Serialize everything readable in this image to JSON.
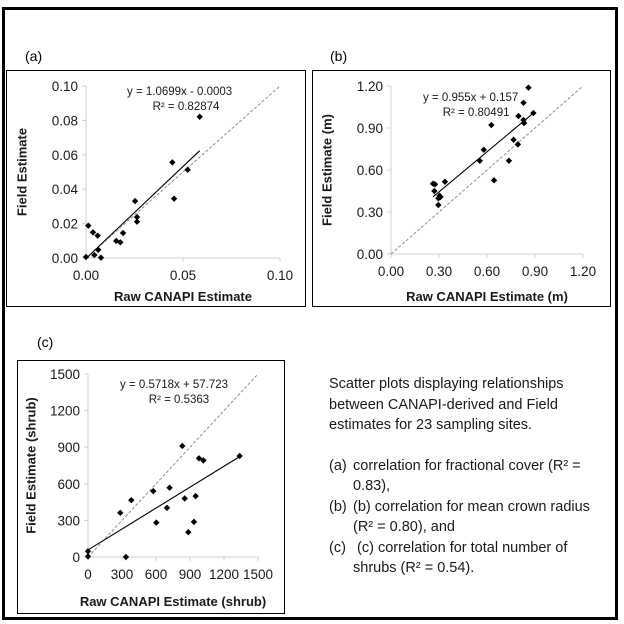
{
  "chart_data": [
    {
      "type": "scatter",
      "panel_label": "(a)",
      "title": "",
      "xlabel": "Raw CANAPI Estimate",
      "ylabel": "Field Estimate",
      "xlim": [
        0,
        0.1
      ],
      "ylim": [
        0,
        0.1
      ],
      "xticks": [
        "0.00",
        "0.05",
        "0.10"
      ],
      "xtick_values": [
        0,
        0.05,
        0.1
      ],
      "yticks": [
        "0.00",
        "0.02",
        "0.04",
        "0.06",
        "0.08",
        "0.10"
      ],
      "ytick_values": [
        0,
        0.02,
        0.04,
        0.06,
        0.08,
        0.1
      ],
      "grid": false,
      "equation": "y = 1.0699x - 0.0003",
      "r2_label": "R² = 0.82874",
      "trendline": {
        "slope": 1.0699,
        "intercept": -0.0003,
        "x_range": [
          0.0,
          0.0586
        ]
      },
      "one_to_one_line": true,
      "points": [
        {
          "x": 0.0586,
          "y": 0.0821
        },
        {
          "x": 0.0445,
          "y": 0.0556
        },
        {
          "x": 0.0524,
          "y": 0.0513
        },
        {
          "x": 0.0454,
          "y": 0.0345
        },
        {
          "x": 0.0253,
          "y": 0.0331
        },
        {
          "x": 0.0263,
          "y": 0.0238
        },
        {
          "x": 0.0263,
          "y": 0.0211
        },
        {
          "x": 0.0191,
          "y": 0.0145
        },
        {
          "x": 0.0156,
          "y": 0.0099
        },
        {
          "x": 0.0177,
          "y": 0.0091
        },
        {
          "x": 0.0012,
          "y": 0.0188
        },
        {
          "x": 0.0036,
          "y": 0.0149
        },
        {
          "x": 0.006,
          "y": 0.013
        },
        {
          "x": 0.0063,
          "y": 0.0048
        },
        {
          "x": 0.0043,
          "y": 0.0017
        },
        {
          "x": 0.0077,
          "y": 0.0002
        },
        {
          "x": 0.0,
          "y": 0.0006
        }
      ]
    },
    {
      "type": "scatter",
      "panel_label": "(b)",
      "title": "",
      "xlabel": "Raw CANAPI Estimate (m)",
      "ylabel": "Field Estimate (m)",
      "xlim": [
        0,
        1.2
      ],
      "ylim": [
        0,
        1.2
      ],
      "xticks": [
        "0.00",
        "0.30",
        "0.60",
        "0.90",
        "1.20"
      ],
      "xtick_values": [
        0,
        0.3,
        0.6,
        0.9,
        1.2
      ],
      "yticks": [
        "0.00",
        "0.30",
        "0.60",
        "0.90",
        "1.20"
      ],
      "ytick_values": [
        0,
        0.3,
        0.6,
        0.9,
        1.2
      ],
      "grid": false,
      "equation": "y = 0.955x + 0.157",
      "r2_label": "R² = 0.80491",
      "trendline": {
        "slope": 0.955,
        "intercept": 0.157,
        "x_range": [
          0.263,
          0.89
        ]
      },
      "one_to_one_line": true,
      "points": [
        {
          "x": 0.859,
          "y": 1.188
        },
        {
          "x": 0.828,
          "y": 1.08
        },
        {
          "x": 0.797,
          "y": 0.985
        },
        {
          "x": 0.89,
          "y": 1.007
        },
        {
          "x": 0.828,
          "y": 0.957
        },
        {
          "x": 0.832,
          "y": 0.935
        },
        {
          "x": 0.627,
          "y": 0.921
        },
        {
          "x": 0.766,
          "y": 0.816
        },
        {
          "x": 0.793,
          "y": 0.783
        },
        {
          "x": 0.58,
          "y": 0.745
        },
        {
          "x": 0.555,
          "y": 0.666
        },
        {
          "x": 0.737,
          "y": 0.666
        },
        {
          "x": 0.644,
          "y": 0.526
        },
        {
          "x": 0.263,
          "y": 0.502
        },
        {
          "x": 0.275,
          "y": 0.498
        },
        {
          "x": 0.337,
          "y": 0.516
        },
        {
          "x": 0.271,
          "y": 0.45
        },
        {
          "x": 0.304,
          "y": 0.416
        },
        {
          "x": 0.296,
          "y": 0.398
        },
        {
          "x": 0.309,
          "y": 0.407
        },
        {
          "x": 0.296,
          "y": 0.35
        }
      ]
    },
    {
      "type": "scatter",
      "panel_label": "(c)",
      "title": "",
      "xlabel": "Raw CANAPI Estimate (shrub)",
      "ylabel": "Field Estimate (shrub)",
      "xlim": [
        0,
        1500
      ],
      "ylim": [
        0,
        1500
      ],
      "xticks": [
        "0",
        "300",
        "600",
        "900",
        "1200",
        "1500"
      ],
      "xtick_values": [
        0,
        300,
        600,
        900,
        1200,
        1500
      ],
      "yticks": [
        "0",
        "300",
        "600",
        "900",
        "1200",
        "1500"
      ],
      "ytick_values": [
        0,
        300,
        600,
        900,
        1200,
        1500
      ],
      "grid": false,
      "equation": "y = 0.5718x + 57.723",
      "r2_label": "R² = 0.5363",
      "trendline": {
        "slope": 0.5718,
        "intercept": 57.723,
        "x_range": [
          0,
          1338
        ]
      },
      "one_to_one_line": true,
      "points": [
        {
          "x": 832,
          "y": 910
        },
        {
          "x": 1338,
          "y": 828
        },
        {
          "x": 979,
          "y": 809
        },
        {
          "x": 1018,
          "y": 792
        },
        {
          "x": 576,
          "y": 540
        },
        {
          "x": 720,
          "y": 568
        },
        {
          "x": 382,
          "y": 466
        },
        {
          "x": 285,
          "y": 362
        },
        {
          "x": 853,
          "y": 480
        },
        {
          "x": 950,
          "y": 499
        },
        {
          "x": 697,
          "y": 403
        },
        {
          "x": 603,
          "y": 282
        },
        {
          "x": 935,
          "y": 288
        },
        {
          "x": 885,
          "y": 203
        },
        {
          "x": 335,
          "y": 0
        },
        {
          "x": 0,
          "y": 47
        },
        {
          "x": 0,
          "y": 5
        }
      ]
    }
  ],
  "caption": {
    "intro": "Scatter plots displaying relationships between  CANAPI-derived  and Field estimates for 23 sampling sites.",
    "items": [
      {
        "tag": "(a)",
        "text": "correlation for fractional cover (R² = 0.83),"
      },
      {
        "tag": "(b)",
        "text": "(b) correlation for mean crown radius (R² = 0.80), and"
      },
      {
        "tag": "(c)",
        "text": " (c) correlation for total number of shrubs (R² = 0.54)."
      }
    ]
  },
  "colors": {
    "marker": "#000000",
    "trendline": "#000000",
    "one_to_one": "#8c8c8c",
    "axis": "#d0d0d0",
    "text": "#1a1a1a"
  }
}
